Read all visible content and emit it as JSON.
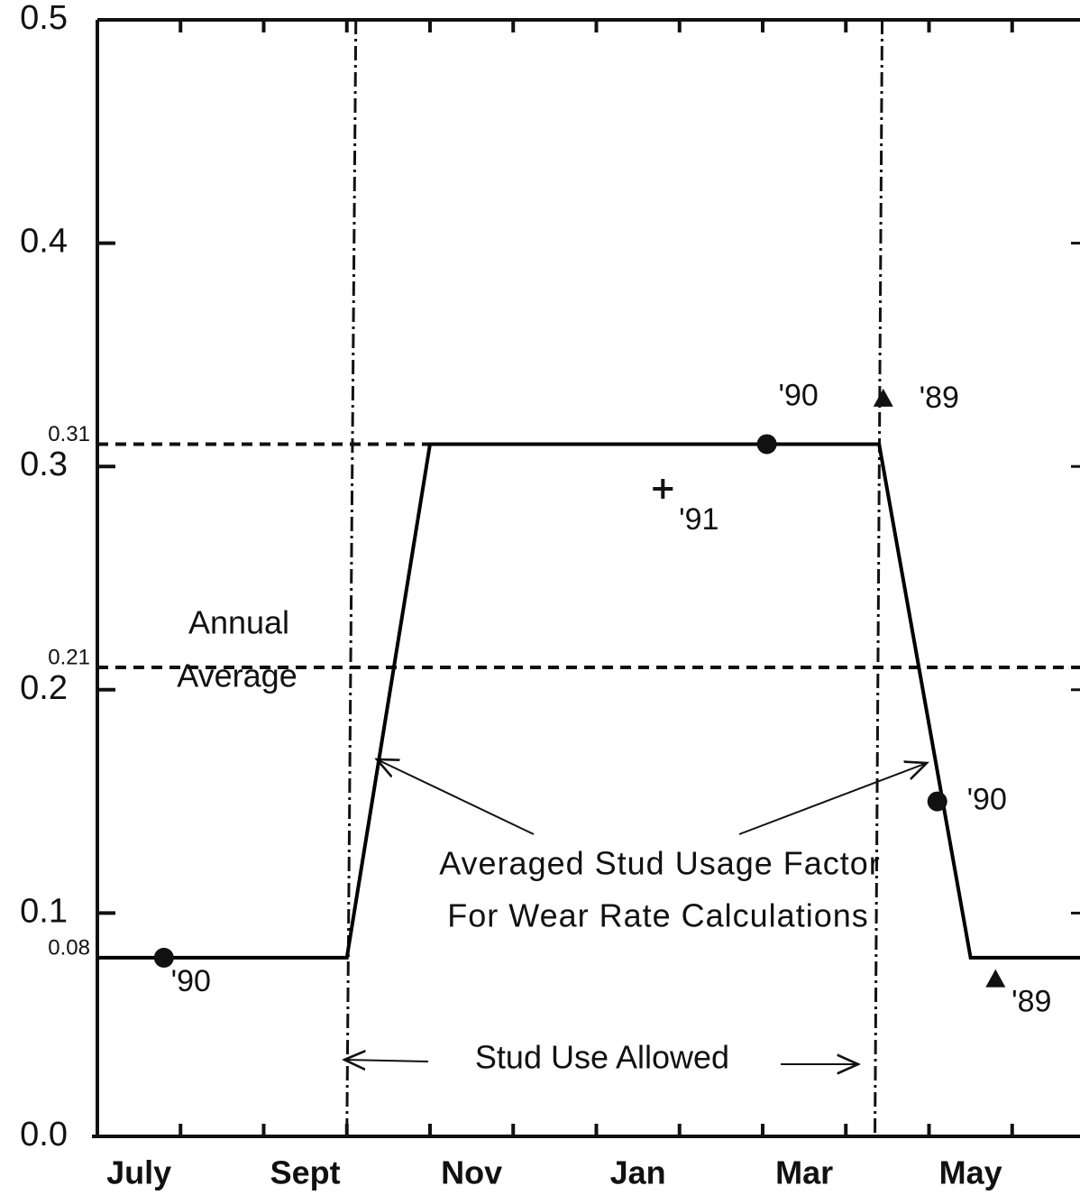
{
  "chart_data": {
    "type": "line",
    "xlim": [
      0,
      12
    ],
    "ylim": [
      0,
      0.5
    ],
    "xticks": [
      1,
      2,
      3,
      4,
      5,
      6,
      7,
      8,
      9,
      10,
      11
    ],
    "xtick_labels": [
      {
        "value": 0.5,
        "label": "July"
      },
      {
        "value": 2.5,
        "label": "Sept"
      },
      {
        "value": 4.5,
        "label": "Nov"
      },
      {
        "value": 6.5,
        "label": "Jan"
      },
      {
        "value": 8.5,
        "label": "Mar"
      },
      {
        "value": 10.5,
        "label": "May"
      }
    ],
    "yticks": [
      {
        "value": 0,
        "label": "0.0"
      },
      0.1,
      0.2,
      0.3,
      0.4,
      0.5
    ],
    "series": [
      {
        "name": "Averaged Stud Usage Factor",
        "color": "#000000",
        "x": [
          0,
          3.0,
          4.0,
          9.4,
          10.5,
          12
        ],
        "values": [
          0.08,
          0.08,
          0.31,
          0.31,
          0.08,
          0.08
        ]
      }
    ],
    "points": [
      {
        "x": 0.8,
        "y": 0.08,
        "label": "'90",
        "marker": "circle"
      },
      {
        "x": 8.05,
        "y": 0.31,
        "label": "'90",
        "marker": "circle"
      },
      {
        "x": 10.1,
        "y": 0.15,
        "label": "'90",
        "marker": "circle"
      },
      {
        "x": 9.45,
        "y": 0.33,
        "label": "'89",
        "marker": "triangle"
      },
      {
        "x": 10.8,
        "y": 0.07,
        "label": "'89",
        "marker": "triangle"
      },
      {
        "x": 6.8,
        "y": 0.29,
        "label": "'91",
        "marker": "plus"
      }
    ],
    "reference_lines": [
      {
        "value": 0.31,
        "label": "0.31"
      },
      {
        "value": 0.21,
        "label": "0.21"
      },
      {
        "value": 0.08,
        "label": "0.08",
        "line": false
      }
    ],
    "vlines": [
      3.0,
      9.35
    ],
    "annotations": {
      "annual_average": [
        "Annual",
        "Average"
      ],
      "factor": [
        "Averaged Stud Usage Factor",
        "For Wear Rate Calculations"
      ],
      "stud_use": "Stud Use Allowed"
    }
  }
}
